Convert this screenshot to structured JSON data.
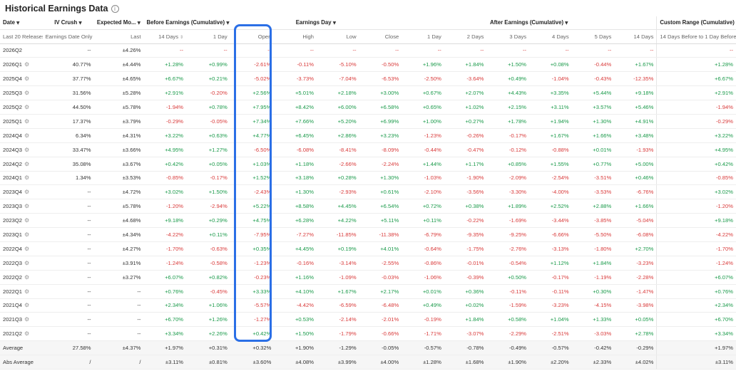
{
  "header": {
    "title": "Historical Earnings Data",
    "info_icon": "info-icon"
  },
  "groups": {
    "date": "Date",
    "iv_crush": "IV Crush",
    "expected_move": "Expected Mo...",
    "before": "Before Earnings (Cumulative)",
    "earnings_day": "Earnings Day",
    "after": "After Earnings (Cumulative)",
    "custom": "Custom Range (Cumulative)"
  },
  "subheaders": {
    "date": "Last 20 Releases",
    "iv": "Earnings Date Only",
    "exp": "Last",
    "b14": "14 Days",
    "b1": "1 Day",
    "open": "Open",
    "high": "High",
    "low": "Low",
    "close": "Close",
    "a1": "1 Day",
    "a2": "2 Days",
    "a3": "3 Days",
    "a4": "4 Days",
    "a5": "5 Days",
    "a14": "14 Days",
    "custom": "14 Days Before to 1 Day Before"
  },
  "colors": {
    "positive": "#1a9a4a",
    "negative": "#d93a3a",
    "highlight": "#2b6fe6"
  },
  "rows": [
    {
      "date": "2026Q2",
      "gear": false,
      "iv": "--",
      "exp": "±4.26%",
      "b14": "--",
      "b1": "--",
      "open": "--",
      "high": "--",
      "low": "--",
      "close": "--",
      "a1": "--",
      "a2": "--",
      "a3": "--",
      "a4": "--",
      "a5": "--",
      "a14": "--",
      "custom": "--"
    },
    {
      "date": "2026Q1",
      "gear": true,
      "iv": "40.77%",
      "exp": "±4.44%",
      "b14": "+1.28%",
      "b1": "+0.99%",
      "open": "-2.61%",
      "high": "-0.11%",
      "low": "-5.10%",
      "close": "-0.50%",
      "a1": "+1.96%",
      "a2": "+1.84%",
      "a3": "+1.50%",
      "a4": "+0.08%",
      "a5": "-0.44%",
      "a14": "+1.67%",
      "custom": "+1.28%"
    },
    {
      "date": "2025Q4",
      "gear": true,
      "iv": "37.77%",
      "exp": "±4.65%",
      "b14": "+6.67%",
      "b1": "+0.21%",
      "open": "-5.02%",
      "high": "-3.73%",
      "low": "-7.04%",
      "close": "-6.53%",
      "a1": "-2.50%",
      "a2": "-3.64%",
      "a3": "+0.49%",
      "a4": "-1.04%",
      "a5": "-0.43%",
      "a14": "-12.35%",
      "custom": "+6.67%"
    },
    {
      "date": "2025Q3",
      "gear": true,
      "iv": "31.56%",
      "exp": "±5.28%",
      "b14": "+2.91%",
      "b1": "-0.20%",
      "open": "+2.56%",
      "high": "+5.01%",
      "low": "+2.18%",
      "close": "+3.00%",
      "a1": "+0.67%",
      "a2": "+2.07%",
      "a3": "+4.43%",
      "a4": "+3.35%",
      "a5": "+5.44%",
      "a14": "+9.18%",
      "custom": "+2.91%"
    },
    {
      "date": "2025Q2",
      "gear": true,
      "iv": "44.50%",
      "exp": "±5.78%",
      "b14": "-1.94%",
      "b1": "+0.78%",
      "open": "+7.95%",
      "high": "+8.42%",
      "low": "+6.00%",
      "close": "+6.58%",
      "a1": "+0.65%",
      "a2": "+1.02%",
      "a3": "+2.15%",
      "a4": "+3.11%",
      "a5": "+3.57%",
      "a14": "+5.46%",
      "custom": "-1.94%"
    },
    {
      "date": "2025Q1",
      "gear": true,
      "iv": "17.37%",
      "exp": "±3.79%",
      "b14": "-0.29%",
      "b1": "-0.05%",
      "open": "+7.34%",
      "high": "+7.66%",
      "low": "+5.20%",
      "close": "+6.99%",
      "a1": "+1.00%",
      "a2": "+0.27%",
      "a3": "+1.78%",
      "a4": "+1.94%",
      "a5": "+1.30%",
      "a14": "+4.91%",
      "custom": "-0.29%"
    },
    {
      "date": "2024Q4",
      "gear": true,
      "iv": "6.34%",
      "exp": "±4.31%",
      "b14": "+3.22%",
      "b1": "+0.63%",
      "open": "+4.77%",
      "high": "+6.45%",
      "low": "+2.86%",
      "close": "+3.23%",
      "a1": "-1.23%",
      "a2": "-0.26%",
      "a3": "-0.17%",
      "a4": "+1.67%",
      "a5": "+1.66%",
      "a14": "+3.48%",
      "custom": "+3.22%"
    },
    {
      "date": "2024Q3",
      "gear": true,
      "iv": "33.47%",
      "exp": "±3.66%",
      "b14": "+4.95%",
      "b1": "+1.27%",
      "open": "-6.50%",
      "high": "-6.08%",
      "low": "-8.41%",
      "close": "-8.09%",
      "a1": "-0.44%",
      "a2": "-0.47%",
      "a3": "-0.12%",
      "a4": "-0.88%",
      "a5": "+0.01%",
      "a14": "-1.93%",
      "custom": "+4.95%"
    },
    {
      "date": "2024Q2",
      "gear": true,
      "iv": "35.08%",
      "exp": "±3.67%",
      "b14": "+0.42%",
      "b1": "+0.05%",
      "open": "+1.03%",
      "high": "+1.18%",
      "low": "-2.66%",
      "close": "-2.24%",
      "a1": "+1.44%",
      "a2": "+1.17%",
      "a3": "+0.85%",
      "a4": "+1.55%",
      "a5": "+0.77%",
      "a14": "+5.00%",
      "custom": "+0.42%"
    },
    {
      "date": "2024Q1",
      "gear": true,
      "iv": "1.34%",
      "exp": "±3.53%",
      "b14": "-0.85%",
      "b1": "-0.17%",
      "open": "+1.52%",
      "high": "+3.18%",
      "low": "+0.28%",
      "close": "+1.30%",
      "a1": "-1.03%",
      "a2": "-1.90%",
      "a3": "-2.09%",
      "a4": "-2.54%",
      "a5": "-3.51%",
      "a14": "+0.46%",
      "custom": "-0.85%"
    },
    {
      "date": "2023Q4",
      "gear": true,
      "iv": "--",
      "exp": "±4.72%",
      "b14": "+3.02%",
      "b1": "+1.50%",
      "open": "-2.43%",
      "high": "+1.30%",
      "low": "-2.93%",
      "close": "+0.61%",
      "a1": "-2.10%",
      "a2": "-3.56%",
      "a3": "-3.30%",
      "a4": "-4.00%",
      "a5": "-3.53%",
      "a14": "-6.76%",
      "custom": "+3.02%"
    },
    {
      "date": "2023Q3",
      "gear": true,
      "iv": "--",
      "exp": "±5.78%",
      "b14": "-1.20%",
      "b1": "-2.94%",
      "open": "+5.22%",
      "high": "+8.58%",
      "low": "+4.45%",
      "close": "+6.54%",
      "a1": "+0.72%",
      "a2": "+0.38%",
      "a3": "+1.89%",
      "a4": "+2.52%",
      "a5": "+2.88%",
      "a14": "+1.66%",
      "custom": "-1.20%"
    },
    {
      "date": "2023Q2",
      "gear": true,
      "iv": "--",
      "exp": "±4.68%",
      "b14": "+9.18%",
      "b1": "+0.29%",
      "open": "+4.75%",
      "high": "+6.28%",
      "low": "+4.22%",
      "close": "+5.11%",
      "a1": "+0.11%",
      "a2": "-0.22%",
      "a3": "-1.69%",
      "a4": "-3.44%",
      "a5": "-3.85%",
      "a14": "-5.04%",
      "custom": "+9.18%"
    },
    {
      "date": "2023Q1",
      "gear": true,
      "iv": "--",
      "exp": "±4.34%",
      "b14": "-4.22%",
      "b1": "+0.11%",
      "open": "-7.95%",
      "high": "-7.27%",
      "low": "-11.85%",
      "close": "-11.38%",
      "a1": "-6.79%",
      "a2": "-9.35%",
      "a3": "-9.25%",
      "a4": "-6.66%",
      "a5": "-5.50%",
      "a14": "-6.08%",
      "custom": "-4.22%"
    },
    {
      "date": "2022Q4",
      "gear": true,
      "iv": "--",
      "exp": "±4.27%",
      "b14": "-1.70%",
      "b1": "-0.63%",
      "open": "+0.35%",
      "high": "+4.45%",
      "low": "+0.19%",
      "close": "+4.01%",
      "a1": "-0.64%",
      "a2": "-1.75%",
      "a3": "-2.76%",
      "a4": "-3.13%",
      "a5": "-1.80%",
      "a14": "+2.70%",
      "custom": "-1.70%"
    },
    {
      "date": "2022Q3",
      "gear": true,
      "iv": "--",
      "exp": "±3.91%",
      "b14": "-1.24%",
      "b1": "-0.58%",
      "open": "-1.23%",
      "high": "-0.16%",
      "low": "-3.14%",
      "close": "-2.55%",
      "a1": "-0.86%",
      "a2": "-0.01%",
      "a3": "-0.54%",
      "a4": "+1.12%",
      "a5": "+1.84%",
      "a14": "-3.23%",
      "custom": "-1.24%"
    },
    {
      "date": "2022Q2",
      "gear": true,
      "iv": "--",
      "exp": "±3.27%",
      "b14": "+6.07%",
      "b1": "+0.82%",
      "open": "-0.23%",
      "high": "+1.16%",
      "low": "-1.09%",
      "close": "-0.03%",
      "a1": "-1.06%",
      "a2": "-0.39%",
      "a3": "+0.50%",
      "a4": "-0.17%",
      "a5": "-1.19%",
      "a14": "-2.28%",
      "custom": "+6.07%"
    },
    {
      "date": "2022Q1",
      "gear": true,
      "iv": "--",
      "exp": "--",
      "b14": "+0.76%",
      "b1": "-0.45%",
      "open": "+3.33%",
      "high": "+4.10%",
      "low": "+1.67%",
      "close": "+2.17%",
      "a1": "+0.01%",
      "a2": "+0.36%",
      "a3": "-0.11%",
      "a4": "-0.11%",
      "a5": "+0.30%",
      "a14": "-1.47%",
      "custom": "+0.76%"
    },
    {
      "date": "2021Q4",
      "gear": true,
      "iv": "--",
      "exp": "--",
      "b14": "+2.34%",
      "b1": "+1.06%",
      "open": "-5.57%",
      "high": "-4.42%",
      "low": "-6.59%",
      "close": "-6.48%",
      "a1": "+0.49%",
      "a2": "+0.02%",
      "a3": "-1.59%",
      "a4": "-3.23%",
      "a5": "-4.15%",
      "a14": "-3.98%",
      "custom": "+2.34%"
    },
    {
      "date": "2021Q3",
      "gear": true,
      "iv": "--",
      "exp": "--",
      "b14": "+6.70%",
      "b1": "+1.26%",
      "open": "-1.27%",
      "high": "+0.53%",
      "low": "-2.14%",
      "close": "-2.01%",
      "a1": "-0.19%",
      "a2": "+1.84%",
      "a3": "+0.58%",
      "a4": "+1.04%",
      "a5": "+1.33%",
      "a14": "+0.05%",
      "custom": "+6.70%"
    },
    {
      "date": "2021Q2",
      "gear": true,
      "iv": "--",
      "exp": "--",
      "b14": "+3.34%",
      "b1": "+2.26%",
      "open": "+0.42%",
      "high": "+1.50%",
      "low": "-1.79%",
      "close": "-0.66%",
      "a1": "-1.71%",
      "a2": "-3.07%",
      "a3": "-2.29%",
      "a4": "-2.51%",
      "a5": "-3.03%",
      "a14": "+2.78%",
      "custom": "+3.34%"
    }
  ],
  "summary": [
    {
      "date": "Average",
      "gear": false,
      "iv": "27.58%",
      "exp": "±4.37%",
      "b14": "+1.97%",
      "b1": "+0.31%",
      "open": "+0.32%",
      "high": "+1.90%",
      "low": "-1.29%",
      "close": "-0.05%",
      "a1": "-0.57%",
      "a2": "-0.78%",
      "a3": "-0.49%",
      "a4": "-0.57%",
      "a5": "-0.42%",
      "a14": "-0.29%",
      "custom": "+1.97%"
    },
    {
      "date": "Abs Average",
      "gear": false,
      "iv": "/",
      "exp": "/",
      "b14": "±3.11%",
      "b1": "±0.81%",
      "open": "±3.60%",
      "high": "±4.08%",
      "low": "±3.99%",
      "close": "±4.00%",
      "a1": "±1.28%",
      "a2": "±1.68%",
      "a3": "±1.90%",
      "a4": "±2.20%",
      "a5": "±2.33%",
      "a14": "±4.02%",
      "custom": "±3.11%"
    }
  ]
}
